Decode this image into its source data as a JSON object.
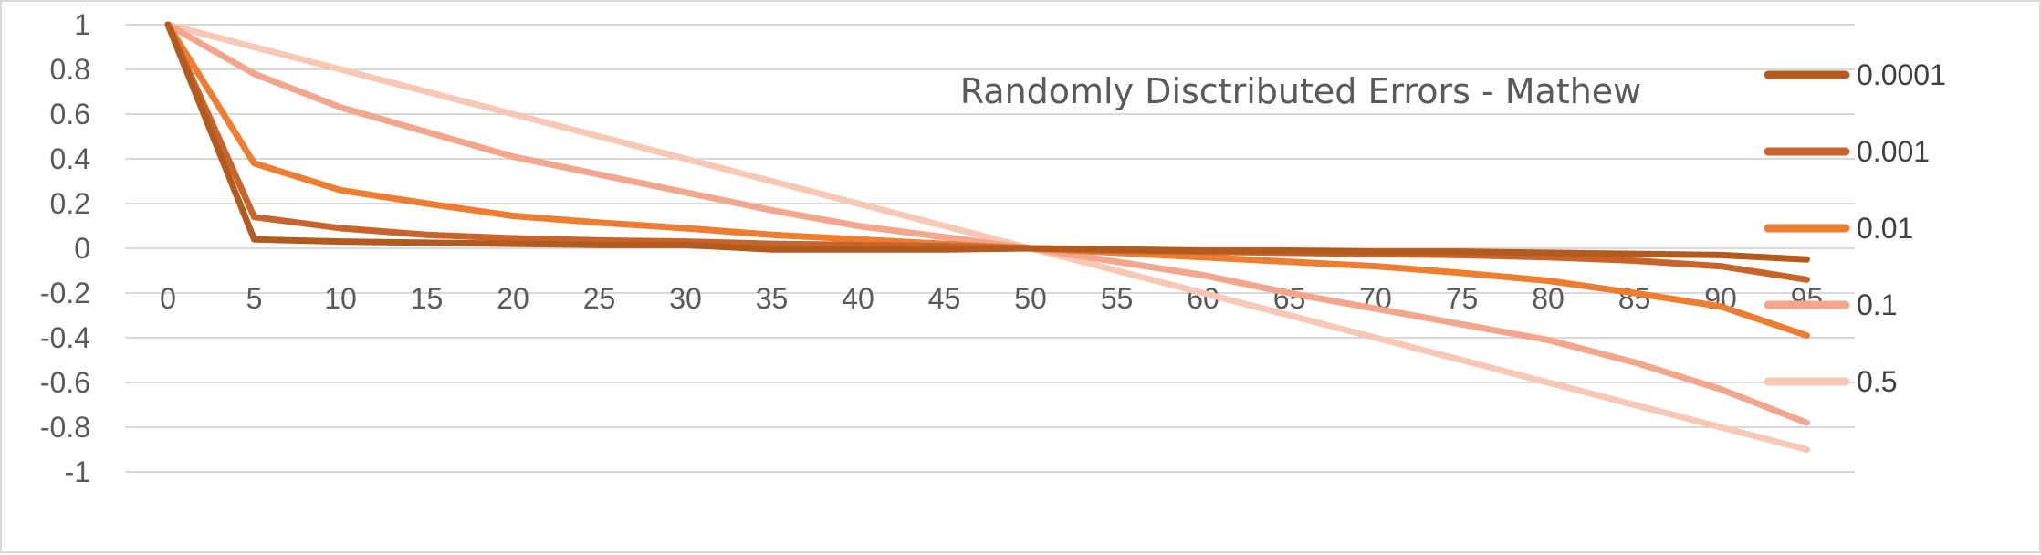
{
  "chart_data": {
    "type": "line",
    "title": "Randomly Disctributed Errors - Mathew",
    "xlabel": "",
    "ylabel": "",
    "x": [
      0,
      5,
      10,
      15,
      20,
      25,
      30,
      35,
      40,
      45,
      50,
      55,
      60,
      65,
      70,
      75,
      80,
      85,
      90,
      95
    ],
    "x_tick_labels": [
      "0",
      "5",
      "10",
      "15",
      "20",
      "25",
      "30",
      "35",
      "40",
      "45",
      "50",
      "55",
      "60",
      "65",
      "70",
      "75",
      "80",
      "85",
      "90",
      "95"
    ],
    "ylim": [
      -1,
      1
    ],
    "y_ticks": [
      1,
      0.8,
      0.6,
      0.4,
      0.2,
      0,
      -0.2,
      -0.4,
      -0.6,
      -0.8,
      -1
    ],
    "y_tick_labels": [
      "1",
      "0.8",
      "0.6",
      "0.4",
      "0.2",
      "0",
      "-0.2",
      "-0.4",
      "-0.6",
      "-0.8",
      "-1"
    ],
    "grid": true,
    "legend_position": "right",
    "series": [
      {
        "name": "0.0001",
        "color": "#b35a1f",
        "values": [
          1,
          0.04,
          0.03,
          0.025,
          0.02,
          0.015,
          0.015,
          -0.005,
          -0.005,
          -0.005,
          0,
          -0.005,
          -0.01,
          -0.01,
          -0.015,
          -0.015,
          -0.02,
          -0.025,
          -0.03,
          -0.05
        ]
      },
      {
        "name": "0.001",
        "color": "#c8642b",
        "values": [
          1,
          0.14,
          0.09,
          0.06,
          0.045,
          0.035,
          0.03,
          0.02,
          0.015,
          0.01,
          0,
          -0.01,
          -0.015,
          -0.02,
          -0.025,
          -0.03,
          -0.04,
          -0.055,
          -0.08,
          -0.14
        ]
      },
      {
        "name": "0.01",
        "color": "#ed7d31",
        "values": [
          1,
          0.38,
          0.26,
          0.2,
          0.145,
          0.115,
          0.09,
          0.06,
          0.04,
          0.02,
          0,
          -0.02,
          -0.04,
          -0.06,
          -0.08,
          -0.11,
          -0.145,
          -0.2,
          -0.26,
          -0.39
        ]
      },
      {
        "name": "0.1",
        "color": "#f2a68c",
        "values": [
          1,
          0.78,
          0.63,
          0.52,
          0.41,
          0.33,
          0.25,
          0.17,
          0.1,
          0.05,
          0,
          -0.06,
          -0.12,
          -0.2,
          -0.27,
          -0.34,
          -0.41,
          -0.51,
          -0.63,
          -0.78
        ]
      },
      {
        "name": "0.5",
        "color": "#f7c8b5",
        "values": [
          1,
          0.9,
          0.8,
          0.7,
          0.6,
          0.5,
          0.4,
          0.3,
          0.2,
          0.1,
          0,
          -0.1,
          -0.2,
          -0.3,
          -0.4,
          -0.5,
          -0.6,
          -0.7,
          -0.8,
          -0.9
        ]
      }
    ]
  }
}
